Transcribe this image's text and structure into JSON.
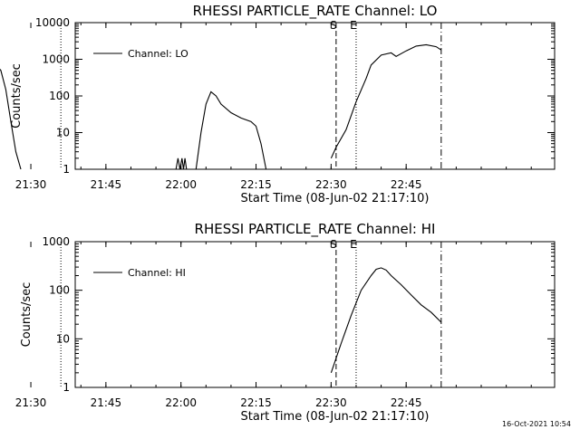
{
  "chart_data": [
    {
      "type": "line",
      "title": "RHESSI PARTICLE_RATE Channel: LO",
      "xlabel": "Start Time (08-Jun-02 21:17:10)",
      "ylabel": "Counts/sec",
      "yscale": "log",
      "ylim": [
        1,
        10000
      ],
      "xlim_minutes": [
        21.7,
        117.5
      ],
      "xtick_labels": [
        "21:30",
        "21:45",
        "22:00",
        "22:15",
        "22:30",
        "22:45"
      ],
      "ytick_labels": [
        "1",
        "10",
        "100",
        "1000",
        "10000"
      ],
      "legend": "Channel: LO",
      "legend_position": "top-left",
      "markers": [
        {
          "label": "S",
          "time": "21:21",
          "style": "dotted"
        },
        {
          "label": "",
          "time": "21:36",
          "style": "dotted"
        },
        {
          "label": "S",
          "time": "22:31",
          "style": "dashed"
        },
        {
          "label": "E",
          "time": "22:35",
          "style": "dotted"
        },
        {
          "label": "",
          "time": "22:52",
          "style": "dashdot"
        }
      ],
      "series": [
        {
          "name": "Channel: LO",
          "segments": [
            {
              "times": [
                "21:21",
                "21:22",
                "21:23",
                "21:24",
                "21:25",
                "21:26",
                "21:27",
                "21:28"
              ],
              "values": [
                300,
                600,
                700,
                500,
                150,
                20,
                3,
                1
              ]
            },
            {
              "times": [
                "21:59",
                "21:59.4",
                "21:59.8",
                "22:00.2",
                "22:00.5",
                "22:00.8",
                "22:01.1"
              ],
              "values": [
                1,
                2,
                1,
                2,
                1,
                2,
                1
              ]
            },
            {
              "times": [
                "22:03",
                "22:04",
                "22:05",
                "22:06",
                "22:07",
                "22:08",
                "22:10",
                "22:12",
                "22:14",
                "22:15",
                "22:16",
                "22:17"
              ],
              "values": [
                1,
                10,
                60,
                130,
                100,
                60,
                35,
                25,
                20,
                15,
                5,
                1
              ]
            },
            {
              "times": [
                "22:30",
                "22:31",
                "22:33",
                "22:35",
                "22:37",
                "22:38",
                "22:40",
                "22:42",
                "22:43",
                "22:45",
                "22:47",
                "22:49",
                "22:51",
                "22:52"
              ],
              "values": [
                2,
                4,
                12,
                70,
                300,
                700,
                1300,
                1500,
                1200,
                1700,
                2300,
                2500,
                2200,
                1800
              ]
            }
          ]
        }
      ]
    },
    {
      "type": "line",
      "title": "RHESSI PARTICLE_RATE Channel: HI",
      "xlabel": "Start Time (08-Jun-02 21:17:10)",
      "ylabel": "Counts/sec",
      "yscale": "log",
      "ylim": [
        1,
        1000
      ],
      "xlim_minutes": [
        21.7,
        117.5
      ],
      "xtick_labels": [
        "21:30",
        "21:45",
        "22:00",
        "22:15",
        "22:30",
        "22:45"
      ],
      "ytick_labels": [
        "1",
        "10",
        "100",
        "1000"
      ],
      "legend": "Channel: HI",
      "legend_position": "top-left",
      "markers": [
        {
          "label": "S",
          "time": "21:21",
          "style": "dotted"
        },
        {
          "label": "",
          "time": "21:36",
          "style": "dotted"
        },
        {
          "label": "S",
          "time": "22:31",
          "style": "dashed"
        },
        {
          "label": "E",
          "time": "22:35",
          "style": "dotted"
        },
        {
          "label": "",
          "time": "22:52",
          "style": "dashdot"
        }
      ],
      "series": [
        {
          "name": "Channel: HI",
          "segments": [
            {
              "times": [
                "22:30",
                "22:32",
                "22:34",
                "22:36",
                "22:38",
                "22:39",
                "22:40",
                "22:41",
                "22:42",
                "22:44",
                "22:46",
                "22:48",
                "22:50",
                "22:52"
              ],
              "values": [
                2,
                8,
                30,
                100,
                200,
                270,
                290,
                260,
                200,
                130,
                80,
                50,
                35,
                22
              ]
            }
          ]
        }
      ]
    }
  ],
  "footer": {
    "date_stamp": "16-Oct-2021 10:54"
  }
}
